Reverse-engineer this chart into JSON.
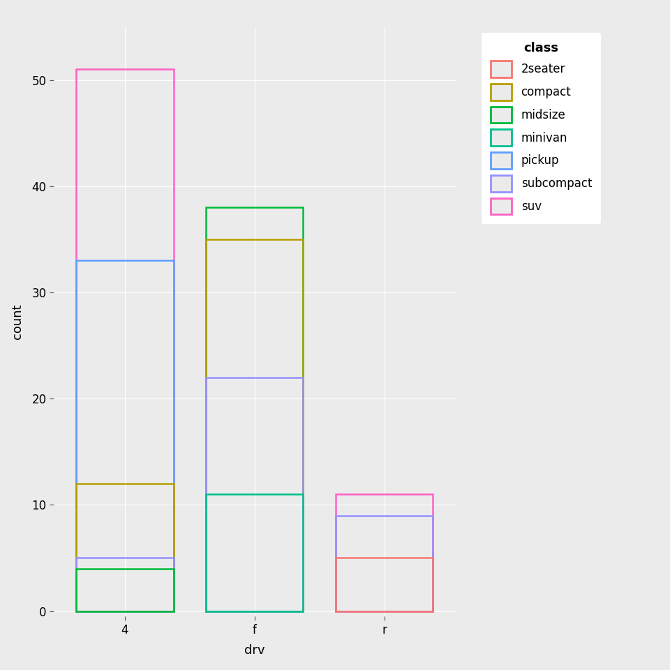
{
  "drive_types": [
    "4",
    "f",
    "r"
  ],
  "classes": [
    "2seater",
    "compact",
    "midsize",
    "minivan",
    "pickup",
    "subcompact",
    "suv"
  ],
  "colors": {
    "2seater": "#F8766D",
    "compact": "#B79F00",
    "midsize": "#00BA38",
    "minivan": "#00C08B",
    "pickup": "#619CFF",
    "subcompact": "#9590FF",
    "suv": "#FF61C3"
  },
  "data": {
    "4": {
      "2seater": 0,
      "compact": 12,
      "midsize": 4,
      "minivan": 0,
      "pickup": 33,
      "subcompact": 5,
      "suv": 51
    },
    "f": {
      "2seater": 0,
      "compact": 35,
      "midsize": 38,
      "minivan": 11,
      "pickup": 0,
      "subcompact": 22,
      "suv": 0
    },
    "r": {
      "2seater": 5,
      "compact": 0,
      "midsize": 0,
      "minivan": 0,
      "pickup": 0,
      "subcompact": 9,
      "suv": 11
    }
  },
  "bar_width": 0.75,
  "bar_positions": [
    1,
    2,
    3
  ],
  "xlabels": [
    "4",
    "f",
    "r"
  ],
  "ylabel": "count",
  "xlabel": "drv",
  "ylim": [
    -0.5,
    55
  ],
  "yticks": [
    0,
    10,
    20,
    30,
    40,
    50
  ],
  "background_color": "#EBEBEB",
  "grid_color": "#FFFFFF",
  "legend_title": "class"
}
